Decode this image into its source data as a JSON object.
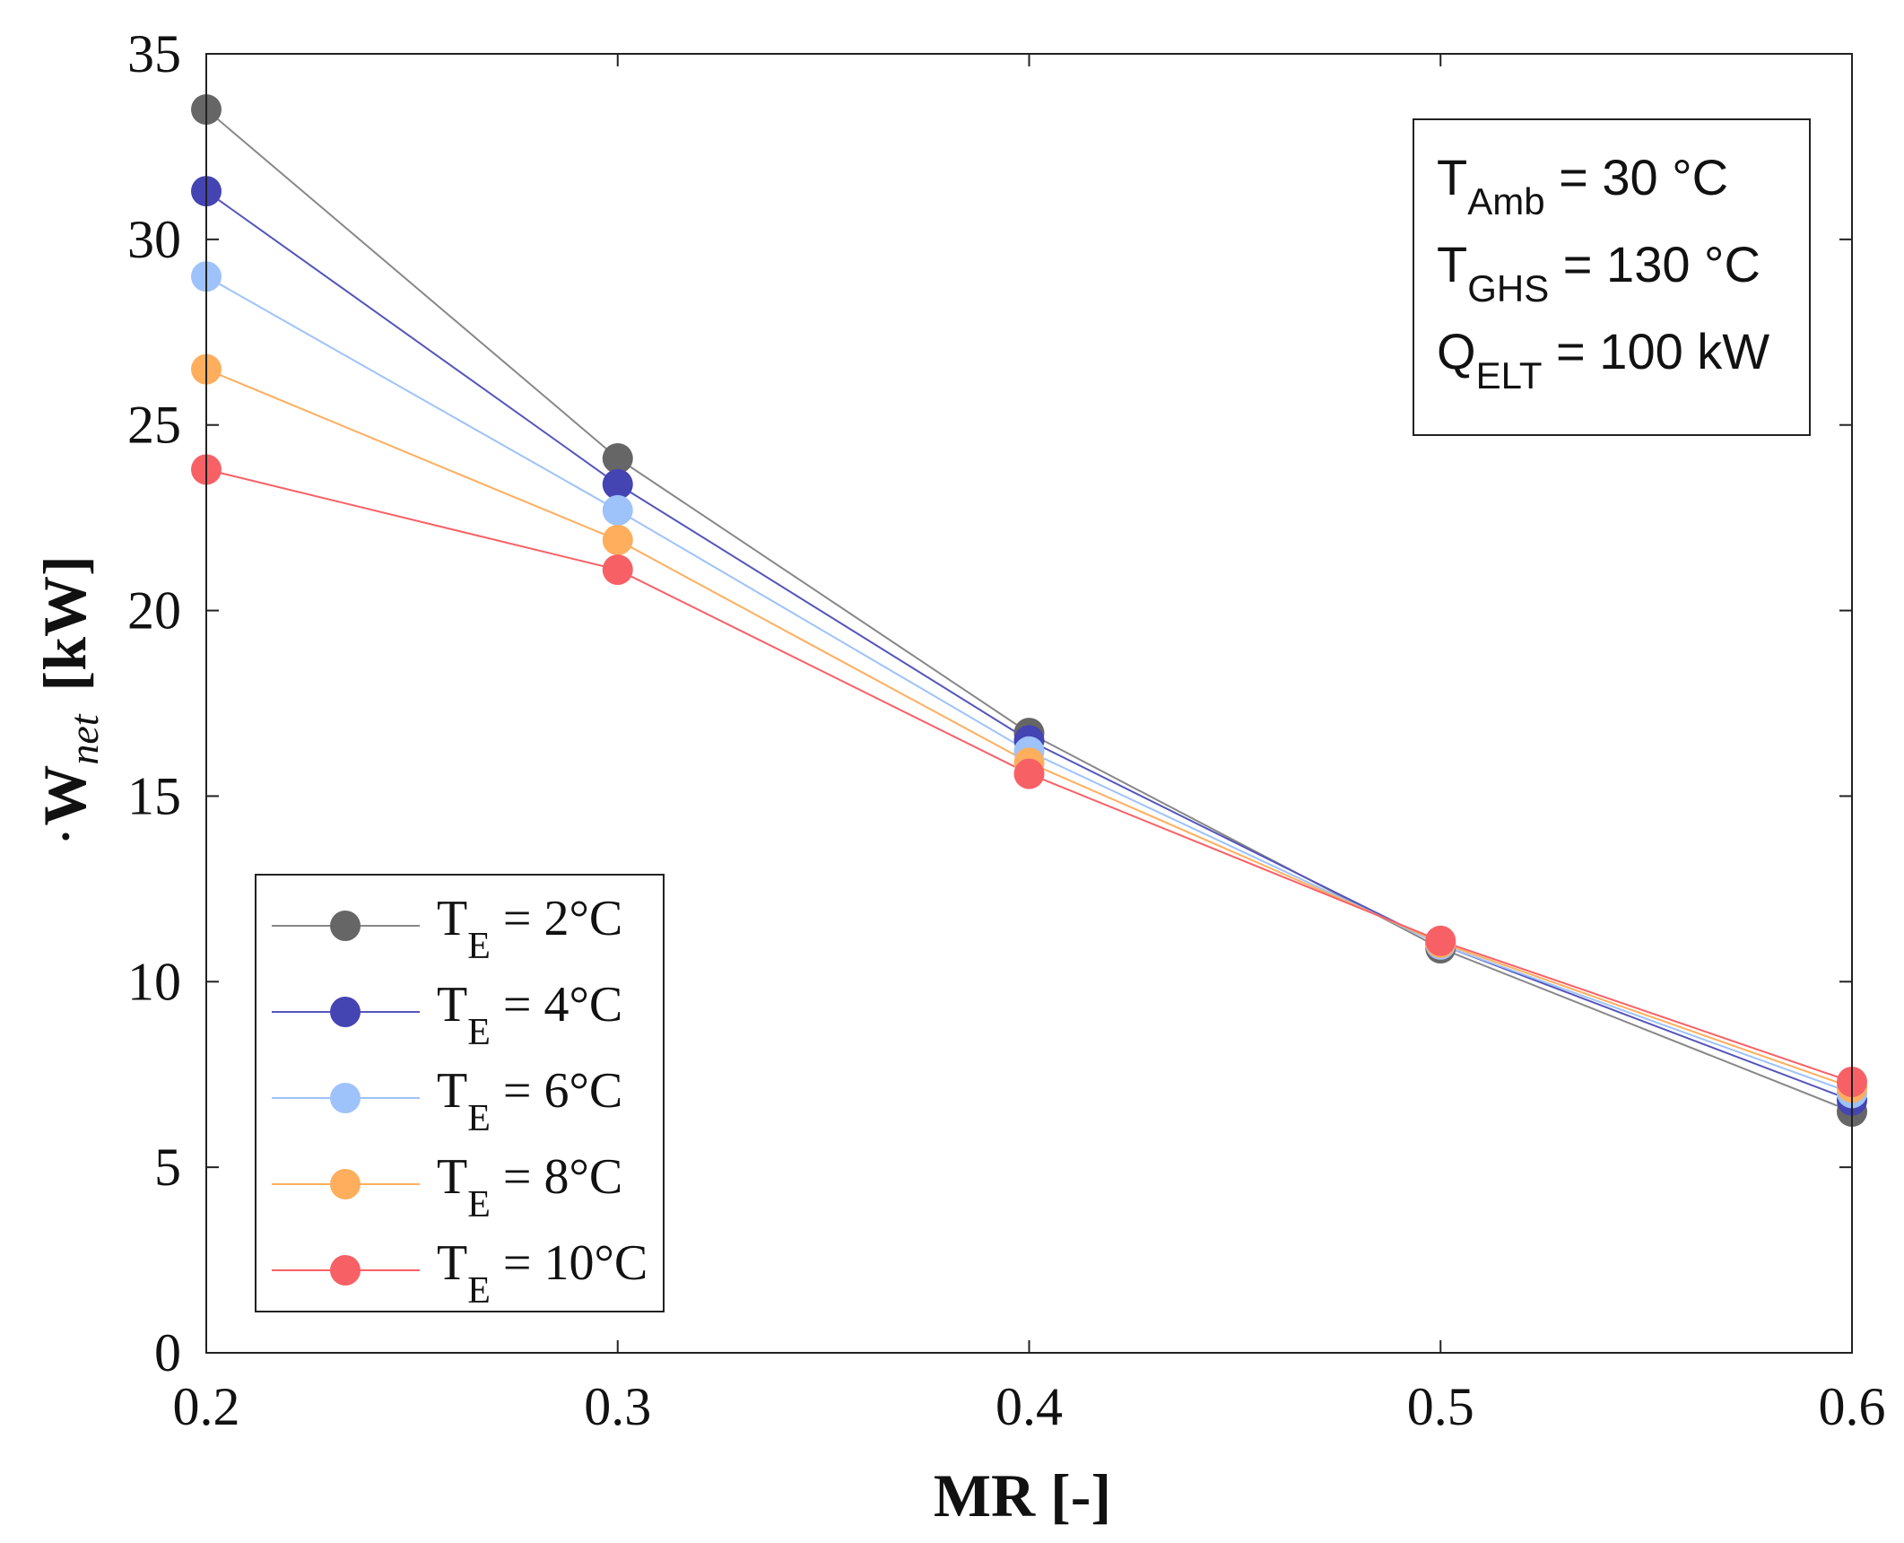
{
  "chart_data": {
    "type": "line",
    "xlabel": "MR [-]",
    "ylabel": {
      "symbol": "W",
      "subscript": "net",
      "unit": "[kW]"
    },
    "xlim": [
      0.2,
      0.6
    ],
    "ylim": [
      0,
      35
    ],
    "xticks": [
      0.2,
      0.3,
      0.4,
      0.5,
      0.6
    ],
    "xtick_labels": [
      "0.2",
      "0.3",
      "0.4",
      "0.5",
      "0.6"
    ],
    "yticks": [
      0,
      5,
      10,
      15,
      20,
      25,
      30,
      35
    ],
    "ytick_labels": [
      "0",
      "5",
      "10",
      "15",
      "20",
      "25",
      "30",
      "35"
    ],
    "grid": false,
    "legend_position": "bottom-left",
    "x": [
      0.2,
      0.3,
      0.4,
      0.5,
      0.6
    ],
    "series": [
      {
        "name": "TE2",
        "label_main": "T",
        "label_sub": "E",
        "label_rest": " = 2°C",
        "color": "#666666",
        "line_color": "#888888",
        "values": [
          33.5,
          24.1,
          16.7,
          10.9,
          6.5
        ]
      },
      {
        "name": "TE4",
        "label_main": "T",
        "label_sub": "E",
        "label_rest": " = 4°C",
        "color": "#4444b3",
        "line_color": "#5555bb",
        "values": [
          31.3,
          23.4,
          16.5,
          11.0,
          6.8
        ]
      },
      {
        "name": "TE6",
        "label_main": "T",
        "label_sub": "E",
        "label_rest": " = 6°C",
        "color": "#9ec2fa",
        "line_color": "#9ec2fa",
        "values": [
          29.0,
          22.7,
          16.2,
          11.0,
          7.0
        ]
      },
      {
        "name": "TE8",
        "label_main": "T",
        "label_sub": "E",
        "label_rest": " = 8°C",
        "color": "#ffae5e",
        "line_color": "#ffae5e",
        "values": [
          26.5,
          21.9,
          15.9,
          11.05,
          7.15
        ]
      },
      {
        "name": "TE10",
        "label_main": "T",
        "label_sub": "E",
        "label_rest": " = 10°C",
        "color": "#f76166",
        "line_color": "#f76166",
        "values": [
          23.8,
          21.1,
          15.6,
          11.1,
          7.3
        ]
      }
    ],
    "annotation": [
      {
        "main": "T",
        "sub": "Amb",
        "rest": " = 30 °C"
      },
      {
        "main": "T",
        "sub": "GHS",
        "rest": " = 130 °C"
      },
      {
        "main": "Q",
        "sub": "ELT",
        "rest": " = 100 kW"
      }
    ]
  }
}
